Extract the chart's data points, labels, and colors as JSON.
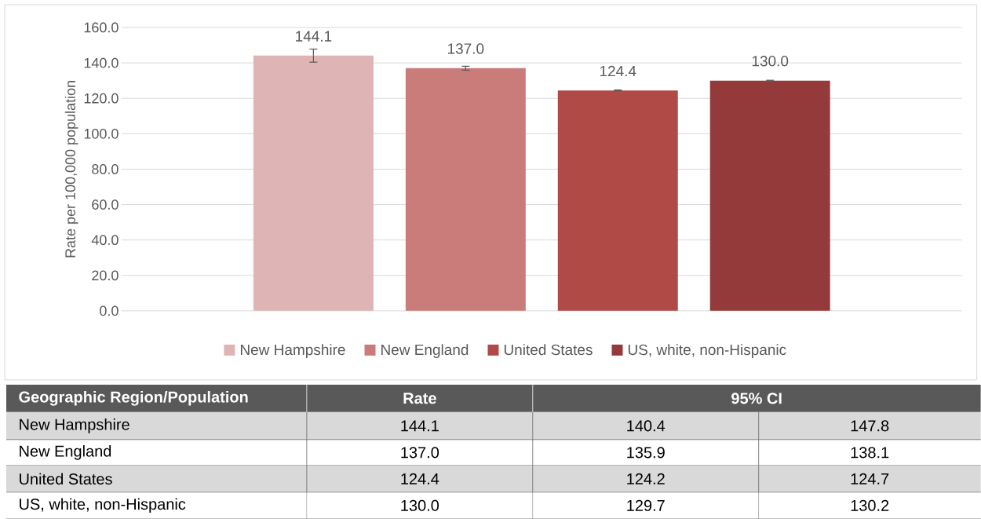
{
  "chart_data": {
    "type": "bar",
    "ylabel": "Rate per 100,000 population",
    "categories": [
      null
    ],
    "series": [
      {
        "name": "New Hampshire",
        "color": "#dfb4b4",
        "values": [
          144.1
        ],
        "value_labels": [
          "144.1"
        ],
        "errors": [
          [
            140.4,
            147.8
          ]
        ]
      },
      {
        "name": "New England",
        "color": "#c97c7a",
        "values": [
          137.0
        ],
        "value_labels": [
          "137.0"
        ],
        "errors": [
          [
            135.9,
            138.1
          ]
        ]
      },
      {
        "name": "United States",
        "color": "#b04a47",
        "values": [
          124.4
        ],
        "value_labels": [
          "124.4"
        ],
        "errors": [
          [
            124.2,
            124.7
          ]
        ]
      },
      {
        "name": "US, white, non-Hispanic",
        "color": "#953a3a",
        "values": [
          130.0
        ],
        "value_labels": [
          "130.0"
        ],
        "errors": [
          [
            129.7,
            130.2
          ]
        ]
      }
    ],
    "ylim": [
      0,
      160
    ],
    "yticks": [
      {
        "value": 0,
        "label": "0.0"
      },
      {
        "value": 20,
        "label": "20.0"
      },
      {
        "value": 40,
        "label": "40.0"
      },
      {
        "value": 60,
        "label": "60.0"
      },
      {
        "value": 80,
        "label": "80.0"
      },
      {
        "value": 100,
        "label": "100.0"
      },
      {
        "value": 120,
        "label": "120.0"
      },
      {
        "value": 140,
        "label": "140.0"
      },
      {
        "value": 160,
        "label": "160.0"
      }
    ],
    "grid": "y",
    "legend": "bottom",
    "annotations": [
      "Geographic Region/Population",
      "Rate",
      "95% CI",
      "140.4",
      "147.8",
      "135.9",
      "138.1",
      "124.2",
      "124.7",
      "129.7",
      "130.2"
    ]
  }
}
